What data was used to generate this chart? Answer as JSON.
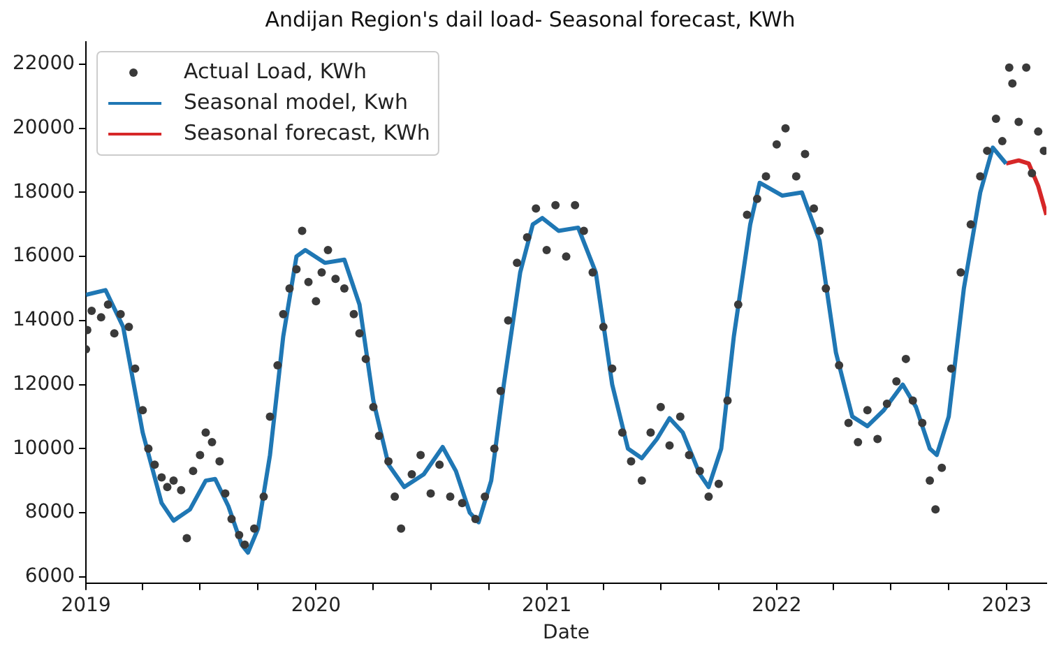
{
  "chart_data": {
    "type": "scatter",
    "title": "Andijan Region's dail load- Seasonal forecast, KWh",
    "xlabel": "Date",
    "xlim": [
      "2019-01-01",
      "2023-03-05"
    ],
    "ylim": [
      5800,
      22700
    ],
    "xticks": [
      {
        "value": "2019-01-01",
        "label": "2019"
      },
      {
        "value": "2019-04-01",
        "label": null
      },
      {
        "value": "2019-07-01",
        "label": null
      },
      {
        "value": "2019-10-01",
        "label": null
      },
      {
        "value": "2020-01-01",
        "label": "2020"
      },
      {
        "value": "2020-04-01",
        "label": null
      },
      {
        "value": "2020-07-01",
        "label": null
      },
      {
        "value": "2020-10-01",
        "label": null
      },
      {
        "value": "2021-01-01",
        "label": "2021"
      },
      {
        "value": "2021-04-01",
        "label": null
      },
      {
        "value": "2021-07-01",
        "label": null
      },
      {
        "value": "2021-10-01",
        "label": null
      },
      {
        "value": "2022-01-01",
        "label": "2022"
      },
      {
        "value": "2022-04-01",
        "label": null
      },
      {
        "value": "2022-07-01",
        "label": null
      },
      {
        "value": "2022-10-01",
        "label": null
      },
      {
        "value": "2023-01-01",
        "label": "2023"
      }
    ],
    "yticks": [
      6000,
      8000,
      10000,
      12000,
      14000,
      16000,
      18000,
      20000,
      22000
    ],
    "grid": false,
    "legend": "top left",
    "series": [
      {
        "name": "Actual Load, KWh",
        "marker": "circle",
        "color": "#3a3a3a",
        "x": [
          "2019-01-01",
          "2019-01-03",
          "2019-01-10",
          "2019-01-25",
          "2019-02-05",
          "2019-02-15",
          "2019-02-25",
          "2019-03-10",
          "2019-03-20",
          "2019-04-01",
          "2019-04-10",
          "2019-04-20",
          "2019-05-01",
          "2019-05-10",
          "2019-05-20",
          "2019-06-01",
          "2019-06-10",
          "2019-06-20",
          "2019-07-01",
          "2019-07-10",
          "2019-07-20",
          "2019-08-01",
          "2019-08-10",
          "2019-08-20",
          "2019-09-01",
          "2019-09-10",
          "2019-09-25",
          "2019-10-10",
          "2019-10-20",
          "2019-11-01",
          "2019-11-10",
          "2019-11-20",
          "2019-12-01",
          "2019-12-10",
          "2019-12-20",
          "2020-01-01",
          "2020-01-10",
          "2020-01-20",
          "2020-02-01",
          "2020-02-15",
          "2020-03-01",
          "2020-03-10",
          "2020-03-20",
          "2020-04-01",
          "2020-04-10",
          "2020-04-25",
          "2020-05-05",
          "2020-05-15",
          "2020-06-01",
          "2020-06-15",
          "2020-07-01",
          "2020-07-15",
          "2020-08-01",
          "2020-08-20",
          "2020-09-10",
          "2020-09-25",
          "2020-10-10",
          "2020-10-20",
          "2020-11-01",
          "2020-11-15",
          "2020-12-01",
          "2020-12-15",
          "2021-01-01",
          "2021-01-15",
          "2021-02-01",
          "2021-02-15",
          "2021-03-01",
          "2021-03-15",
          "2021-04-01",
          "2021-04-15",
          "2021-05-01",
          "2021-05-15",
          "2021-06-01",
          "2021-06-15",
          "2021-07-01",
          "2021-07-15",
          "2021-08-01",
          "2021-08-15",
          "2021-09-01",
          "2021-09-15",
          "2021-10-01",
          "2021-10-15",
          "2021-11-01",
          "2021-11-15",
          "2021-12-01",
          "2021-12-15",
          "2022-01-01",
          "2022-01-15",
          "2022-02-01",
          "2022-02-15",
          "2022-03-01",
          "2022-03-10",
          "2022-03-20",
          "2022-04-10",
          "2022-04-25",
          "2022-05-10",
          "2022-05-25",
          "2022-06-10",
          "2022-06-25",
          "2022-07-10",
          "2022-07-25",
          "2022-08-05",
          "2022-08-20",
          "2022-09-01",
          "2022-09-10",
          "2022-09-20",
          "2022-10-05",
          "2022-10-20",
          "2022-11-05",
          "2022-11-20",
          "2022-12-01",
          "2022-12-15",
          "2022-12-25",
          "2023-01-05",
          "2023-01-10",
          "2023-01-20",
          "2023-02-01",
          "2023-02-10",
          "2023-02-20",
          "2023-03-01"
        ],
        "values": [
          13100,
          13700,
          14300,
          14100,
          14500,
          13600,
          14200,
          13800,
          12500,
          11200,
          10000,
          9500,
          9100,
          8800,
          9000,
          8700,
          7200,
          9300,
          9800,
          10500,
          10200,
          9600,
          8600,
          7800,
          7300,
          7000,
          7500,
          8500,
          11000,
          12600,
          14200,
          15000,
          15600,
          16800,
          15200,
          14600,
          15500,
          16200,
          15300,
          15000,
          14200,
          13600,
          12800,
          11300,
          10400,
          9600,
          8500,
          7500,
          9200,
          9800,
          8600,
          9500,
          8500,
          8300,
          7800,
          8500,
          10000,
          11800,
          14000,
          15800,
          16600,
          17500,
          16200,
          17600,
          16000,
          17600,
          16800,
          15500,
          13800,
          12500,
          10500,
          9600,
          9000,
          10500,
          11300,
          10100,
          11000,
          9800,
          9300,
          8500,
          8900,
          11500,
          14500,
          17300,
          17800,
          18500,
          19500,
          20000,
          18500,
          19200,
          17500,
          16800,
          15000,
          12600,
          10800,
          10200,
          11200,
          10300,
          11400,
          12100,
          12800,
          11500,
          10800,
          9000,
          8100,
          9400,
          12500,
          15500,
          17000,
          18500,
          19300,
          20300,
          19600,
          21900,
          21400,
          20200,
          21900,
          18600,
          19900,
          19300
        ]
      },
      {
        "name": "Seasonal model, Kwh",
        "type": "line",
        "marker": "none",
        "color": "#1f77b4",
        "x": [
          "2019-01-01",
          "2019-02-01",
          "2019-03-01",
          "2019-04-01",
          "2019-05-01",
          "2019-05-20",
          "2019-06-15",
          "2019-07-10",
          "2019-07-25",
          "2019-08-15",
          "2019-09-05",
          "2019-09-15",
          "2019-10-01",
          "2019-10-20",
          "2019-11-10",
          "2019-12-01",
          "2019-12-15",
          "2020-01-15",
          "2020-02-15",
          "2020-03-10",
          "2020-04-01",
          "2020-04-25",
          "2020-05-20",
          "2020-06-20",
          "2020-07-20",
          "2020-08-10",
          "2020-09-01",
          "2020-09-15",
          "2020-10-05",
          "2020-10-25",
          "2020-11-20",
          "2020-12-10",
          "2020-12-25",
          "2021-01-20",
          "2021-02-20",
          "2021-03-20",
          "2021-04-15",
          "2021-05-10",
          "2021-06-01",
          "2021-06-25",
          "2021-07-15",
          "2021-08-05",
          "2021-09-01",
          "2021-09-15",
          "2021-10-05",
          "2021-10-25",
          "2021-11-20",
          "2021-12-05",
          "2022-01-10",
          "2022-02-10",
          "2022-03-10",
          "2022-04-05",
          "2022-05-01",
          "2022-05-25",
          "2022-06-20",
          "2022-07-20",
          "2022-08-10",
          "2022-09-01",
          "2022-09-12",
          "2022-10-01",
          "2022-10-25",
          "2022-11-20",
          "2022-12-10",
          "2022-12-31"
        ],
        "values": [
          14800,
          14950,
          13800,
          10500,
          8300,
          7750,
          8100,
          9000,
          9050,
          8200,
          7000,
          6750,
          7500,
          9800,
          13500,
          16000,
          16200,
          15800,
          15900,
          14500,
          11500,
          9500,
          8800,
          9200,
          10050,
          9300,
          8000,
          7700,
          9000,
          12000,
          15500,
          17000,
          17200,
          16800,
          16900,
          15500,
          12000,
          10000,
          9700,
          10300,
          10950,
          10500,
          9200,
          8800,
          10000,
          13500,
          17000,
          18300,
          17900,
          18000,
          16500,
          13000,
          11000,
          10700,
          11200,
          12000,
          11300,
          10000,
          9800,
          11000,
          15000,
          18000,
          19400,
          18900
        ]
      },
      {
        "name": "Seasonal forecast, KWh",
        "type": "line",
        "marker": "none",
        "color": "#d62728",
        "x": [
          "2022-12-31",
          "2023-01-20",
          "2023-02-05",
          "2023-02-20",
          "2023-03-05"
        ],
        "values": [
          18900,
          19000,
          18900,
          18200,
          17300
        ]
      }
    ]
  }
}
